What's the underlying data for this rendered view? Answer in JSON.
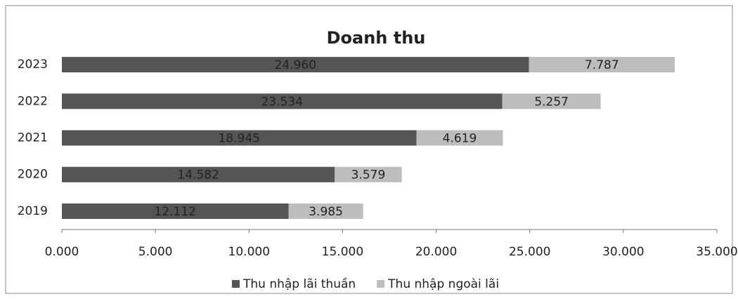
{
  "chart_data": {
    "type": "stacked_barh",
    "title": "Doanh thu",
    "categories": [
      "2019",
      "2020",
      "2021",
      "2022",
      "2023"
    ],
    "series": [
      {
        "name": "Thu nhập lãi thuần",
        "color": "#555555",
        "values": [
          12112,
          14582,
          18945,
          23534,
          24960
        ],
        "value_labels": [
          "12.112",
          "14.582",
          "18.945",
          "23.534",
          "24.960"
        ]
      },
      {
        "name": "Thu nhập ngoài lãi",
        "color": "#bdbdbd",
        "values": [
          3985,
          3579,
          4619,
          5257,
          7787
        ],
        "value_labels": [
          "3.985",
          "3.579",
          "4.619",
          "5.257",
          "7.787"
        ]
      }
    ],
    "xlim": [
      0,
      35000
    ],
    "xticks": [
      {
        "value": 0,
        "label": "0.000"
      },
      {
        "value": 5000,
        "label": "5.000"
      },
      {
        "value": 10000,
        "label": "10.000"
      },
      {
        "value": 15000,
        "label": "15.000"
      },
      {
        "value": 20000,
        "label": "20.000"
      },
      {
        "value": 25000,
        "label": "25.000"
      },
      {
        "value": 30000,
        "label": "30.000"
      },
      {
        "value": 35000,
        "label": "35.000"
      }
    ],
    "legend": "bottom",
    "grid": false
  }
}
